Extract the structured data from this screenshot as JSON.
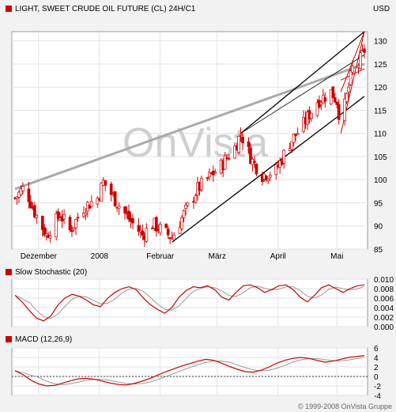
{
  "main": {
    "title": "LIGHT, SWEET CRUDE OIL FUTURE (CL) 24H/C1",
    "currency": "USD",
    "watermark": "OnVista",
    "y_ticks": [
      85,
      90,
      95,
      100,
      105,
      110,
      115,
      120,
      125,
      130
    ],
    "x_labels": [
      "Dezember",
      "2008",
      "Februar",
      "März",
      "April",
      "Mai"
    ],
    "colors": {
      "up": "#ffffff",
      "down": "#cc0000",
      "wick": "#cc0000",
      "channel": "#000000",
      "long_trend": "#aaaaaa",
      "fan": "#cc0000"
    }
  },
  "stochastic": {
    "title": "Slow Stochastic (20)",
    "y_ticks": [
      "0.010",
      "0.008",
      "0.006",
      "0.004",
      "0.002",
      "0.000"
    ]
  },
  "macd": {
    "title": "MACD (12,26,9)",
    "y_ticks": [
      "6",
      "4",
      "2",
      "0",
      "-2",
      "-4"
    ]
  },
  "footer": {
    "copyright": "© 1999-2008 OnVista Gruppe"
  },
  "chart_data": [
    {
      "type": "candlestick",
      "title": "LIGHT, SWEET CRUDE OIL FUTURE (CL) 24H/C1",
      "unit": "USD",
      "ylim": [
        85,
        132
      ],
      "x_range": [
        "2007-11-19",
        "2008-05-15"
      ],
      "x_ticks": [
        "Dezember",
        "2008",
        "Februar",
        "März",
        "April",
        "Mai"
      ],
      "grid": true,
      "anchors": [
        {
          "d": "2007-11-19",
          "v": 96
        },
        {
          "d": "2007-11-24",
          "v": 98.5
        },
        {
          "d": "2007-11-29",
          "v": 93
        },
        {
          "d": "2007-12-05",
          "v": 88
        },
        {
          "d": "2007-12-12",
          "v": 92.5
        },
        {
          "d": "2007-12-17",
          "v": 89
        },
        {
          "d": "2007-12-24",
          "v": 94
        },
        {
          "d": "2007-12-31",
          "v": 96
        },
        {
          "d": "2008-01-03",
          "v": 99.5
        },
        {
          "d": "2008-01-10",
          "v": 95
        },
        {
          "d": "2008-01-17",
          "v": 91
        },
        {
          "d": "2008-01-23",
          "v": 88
        },
        {
          "d": "2008-01-28",
          "v": 90.5
        },
        {
          "d": "2008-02-07",
          "v": 87.5
        },
        {
          "d": "2008-02-13",
          "v": 92.5
        },
        {
          "d": "2008-02-20",
          "v": 98
        },
        {
          "d": "2008-02-27",
          "v": 101
        },
        {
          "d": "2008-03-03",
          "v": 103
        },
        {
          "d": "2008-03-10",
          "v": 107
        },
        {
          "d": "2008-03-13",
          "v": 110
        },
        {
          "d": "2008-03-19",
          "v": 104
        },
        {
          "d": "2008-03-24",
          "v": 101
        },
        {
          "d": "2008-03-31",
          "v": 102
        },
        {
          "d": "2008-04-07",
          "v": 108
        },
        {
          "d": "2008-04-14",
          "v": 112
        },
        {
          "d": "2008-04-21",
          "v": 117
        },
        {
          "d": "2008-04-28",
          "v": 119
        },
        {
          "d": "2008-05-01",
          "v": 117
        },
        {
          "d": "2008-05-03",
          "v": 112
        },
        {
          "d": "2008-05-06",
          "v": 118
        },
        {
          "d": "2008-05-09",
          "v": 124
        },
        {
          "d": "2008-05-12",
          "v": 125
        },
        {
          "d": "2008-05-15",
          "v": 128
        }
      ],
      "trendlines": [
        {
          "name": "long-term",
          "from": {
            "d": "2007-11-19",
            "v": 98
          },
          "to": {
            "d": "2008-05-15",
            "v": 125
          }
        },
        {
          "name": "channel-upper",
          "from": {
            "d": "2008-03-13",
            "v": 110
          },
          "to": {
            "d": "2008-05-15",
            "v": 132
          }
        },
        {
          "name": "channel-lower",
          "from": {
            "d": "2008-02-07",
            "v": 86.5
          },
          "to": {
            "d": "2008-05-15",
            "v": 118
          }
        },
        {
          "name": "channel-mid",
          "from": {
            "d": "2008-03-13",
            "v": 110
          },
          "to": {
            "d": "2008-05-15",
            "v": 127
          }
        },
        {
          "name": "fan-1",
          "from": {
            "d": "2008-05-03",
            "v": 110
          },
          "to": {
            "d": "2008-05-15",
            "v": 132
          }
        },
        {
          "name": "fan-2",
          "from": {
            "d": "2008-05-03",
            "v": 119
          },
          "to": {
            "d": "2008-05-15",
            "v": 132
          }
        },
        {
          "name": "fan-3",
          "from": {
            "d": "2008-05-03",
            "v": 121.5
          },
          "to": {
            "d": "2008-05-15",
            "v": 124
          }
        }
      ]
    },
    {
      "type": "line",
      "title": "Slow Stochastic (20)",
      "ylim": [
        0,
        0.01
      ],
      "series": [
        {
          "values": [
            0.0066,
            0.0052,
            0.0034,
            0.0018,
            0.0012,
            0.0022,
            0.0045,
            0.006,
            0.0068,
            0.0064,
            0.0056,
            0.0046,
            0.0042,
            0.006,
            0.0072,
            0.008,
            0.0084,
            0.0078,
            0.006,
            0.0046,
            0.0036,
            0.0028,
            0.004,
            0.0062,
            0.0076,
            0.0084,
            0.0082,
            0.0086,
            0.0078,
            0.0062,
            0.0056,
            0.0072,
            0.0086,
            0.0088,
            0.0082,
            0.0072,
            0.0078,
            0.0086,
            0.0088,
            0.0078,
            0.0062,
            0.0052,
            0.0066,
            0.0082,
            0.0088,
            0.008,
            0.0072,
            0.008,
            0.0086,
            0.0088
          ]
        }
      ]
    },
    {
      "type": "line",
      "title": "MACD (12,26,9)",
      "ylim": [
        -4,
        6
      ],
      "series": [
        {
          "values": [
            1.2,
            0.4,
            -0.8,
            -1.6,
            -2.0,
            -1.9,
            -1.4,
            -0.9,
            -0.5,
            -0.4,
            -0.6,
            -1.0,
            -1.4,
            -1.7,
            -1.8,
            -1.5,
            -1.0,
            -0.4,
            0.3,
            1.0,
            1.6,
            2.2,
            2.7,
            3.2,
            3.6,
            3.4,
            2.8,
            2.1,
            1.5,
            1.0,
            0.9,
            1.3,
            2.0,
            2.8,
            3.4,
            3.8,
            4.0,
            3.8,
            3.4,
            3.0,
            3.2,
            3.6,
            4.0,
            4.2,
            4.4
          ]
        }
      ]
    }
  ]
}
